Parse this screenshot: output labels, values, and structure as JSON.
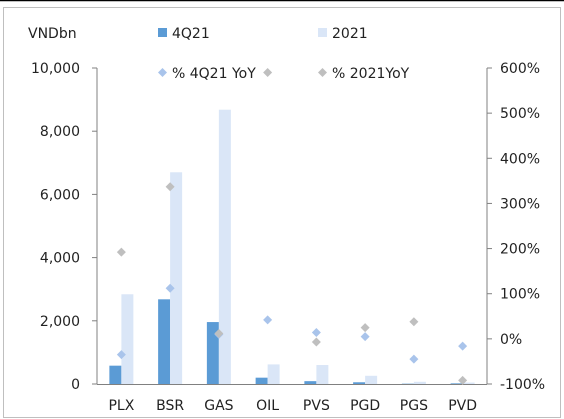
{
  "chart_data": {
    "type": "bar",
    "ylabel": "VNDbn",
    "categories": [
      "PLX",
      "BSR",
      "GAS",
      "OIL",
      "PVS",
      "PGD",
      "PGS",
      "PVD"
    ],
    "series": [
      {
        "name": "4Q21",
        "kind": "bar",
        "axis": "left",
        "color": "#5b9bd5",
        "values": [
          580,
          2680,
          1960,
          200,
          90,
          55,
          10,
          20
        ]
      },
      {
        "name": "2021",
        "kind": "bar",
        "axis": "left",
        "color": "#dae6f7",
        "values": [
          2840,
          6700,
          8680,
          620,
          600,
          260,
          70,
          45
        ]
      },
      {
        "name": "% 4Q21 YoY",
        "kind": "scatter",
        "axis": "right",
        "color": "#a9c4eb",
        "unit": "%",
        "values": [
          -35,
          112,
          10,
          42,
          14,
          5,
          -45,
          -16
        ]
      },
      {
        "name": "% 2021YoY",
        "kind": "scatter",
        "axis": "right",
        "color": "#bfbfbf",
        "unit": "%",
        "values": [
          192,
          337,
          12,
          590,
          -7,
          25,
          38,
          -92
        ]
      }
    ],
    "ylim": [
      0,
      10000
    ],
    "yticks": [
      "10,000",
      "8,000",
      "6,000",
      "4,000",
      "2,000",
      "0"
    ],
    "y2lim": [
      -100,
      600
    ],
    "y2ticks": [
      "600%",
      "500%",
      "400%",
      "300%",
      "200%",
      "100%",
      "0%",
      "-100%"
    ],
    "grid": false,
    "legend_position": "top"
  }
}
